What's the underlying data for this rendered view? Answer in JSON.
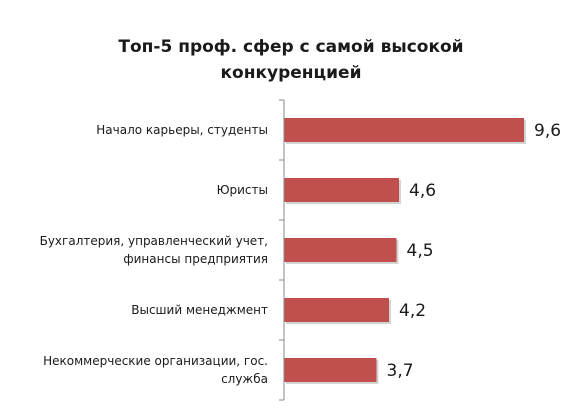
{
  "chart_data": {
    "type": "bar",
    "orientation": "horizontal",
    "title": [
      "Топ-5 проф. сфер с самой высокой",
      "конкуренцией"
    ],
    "categories": [
      [
        "Начало карьеры, студенты"
      ],
      [
        "Юристы"
      ],
      [
        "Бухгалтерия, управленческий учет,",
        "финансы предприятия"
      ],
      [
        "Высший менеджмент"
      ],
      [
        "Некоммерческие организации, гос.",
        "служба"
      ]
    ],
    "values": [
      9.6,
      4.6,
      4.5,
      4.2,
      3.7
    ],
    "value_labels": [
      "9,6",
      "4,6",
      "4,5",
      "4,2",
      "3,7"
    ],
    "xlim": [
      0,
      11
    ],
    "grid": false,
    "legend": "none",
    "colors": {
      "bar_fill": "#c0504d",
      "bar_shadow": "#9e9e9e",
      "axis": "#888888",
      "text": "#1a1a1a"
    }
  }
}
